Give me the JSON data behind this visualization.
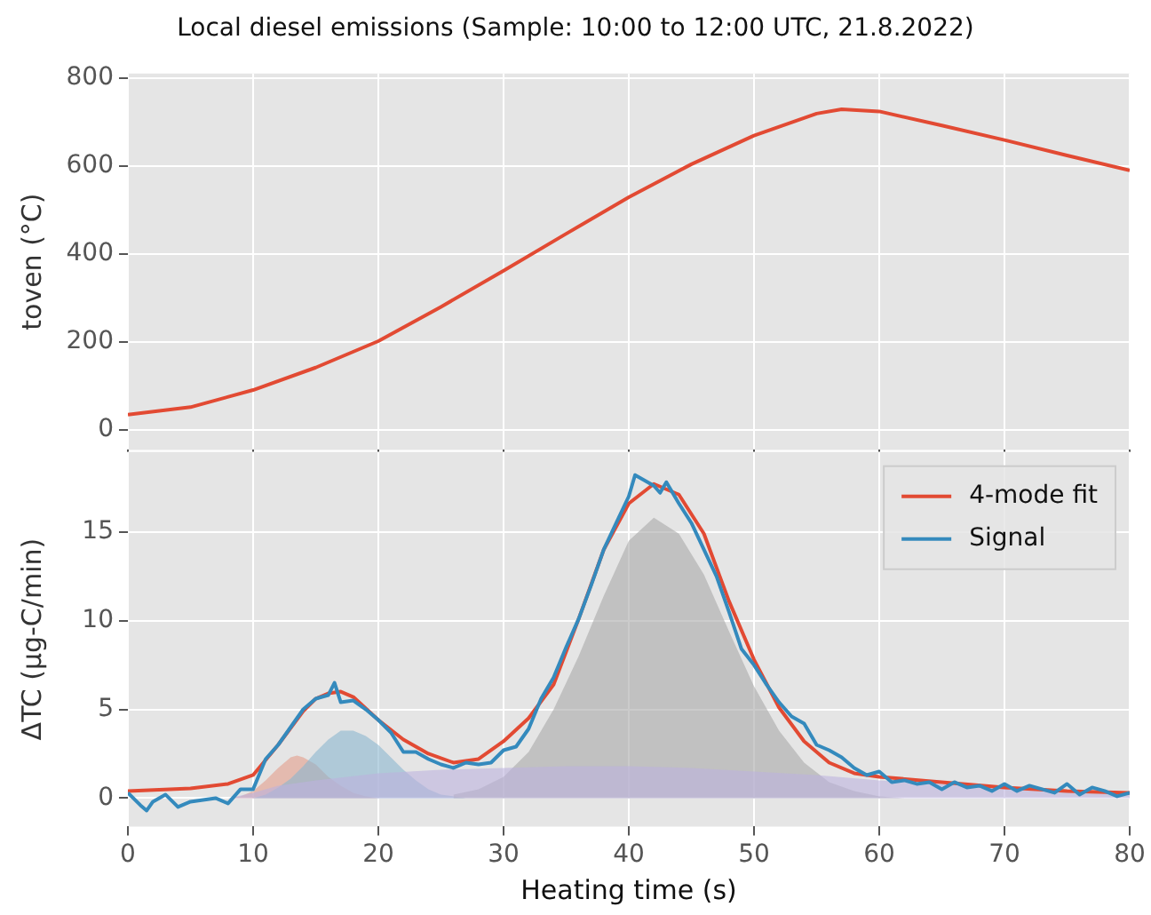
{
  "chart_data": [
    {
      "type": "line",
      "title": "Local diesel emissions (Sample: 10:00 to 12:00 UTC, 21.8.2022)",
      "ylabel": "toven (°C)",
      "x": [
        0,
        5,
        10,
        15,
        20,
        25,
        30,
        35,
        40,
        45,
        50,
        55,
        57,
        60,
        65,
        70,
        75,
        80
      ],
      "series": [
        {
          "color": "#e24a33",
          "values": [
            35,
            52,
            91,
            142,
            202,
            280,
            362,
            446,
            529,
            604,
            669,
            719,
            729,
            724,
            692,
            659,
            624,
            590
          ]
        }
      ],
      "xlim": [
        0,
        80
      ],
      "xticks": [
        0,
        10,
        20,
        30,
        40,
        50,
        60,
        70,
        80
      ],
      "ylim": [
        -45,
        810
      ],
      "yticks": [
        0,
        200,
        400,
        600,
        800
      ],
      "grid": true,
      "tick_labels": "y"
    },
    {
      "type": "line",
      "xlabel": "Heating time (s)",
      "ylabel": "ΔTC (μg-C/min)",
      "series": [
        {
          "type": "area",
          "color": "#e39c8a",
          "x": [
            8,
            9,
            10,
            11,
            12,
            13,
            13.5,
            14,
            15,
            16,
            17,
            18,
            19,
            20
          ],
          "values": [
            0,
            0.1,
            0.4,
            1.0,
            1.7,
            2.3,
            2.4,
            2.3,
            1.9,
            1.2,
            0.7,
            0.3,
            0.1,
            0
          ]
        },
        {
          "type": "area",
          "color": "#8ab6cf",
          "x": [
            10,
            11,
            12,
            13,
            14,
            15,
            16,
            17,
            18,
            19,
            20,
            21,
            22,
            23,
            24,
            25,
            26,
            27
          ],
          "values": [
            0,
            0.2,
            0.6,
            1.1,
            1.8,
            2.6,
            3.3,
            3.8,
            3.8,
            3.5,
            3.0,
            2.3,
            1.6,
            1.0,
            0.5,
            0.2,
            0.1,
            0
          ]
        },
        {
          "type": "area",
          "color": "#a8a8a8",
          "x": [
            26,
            28,
            30,
            32,
            34,
            36,
            38,
            40,
            42,
            44,
            46,
            48,
            50,
            52,
            54,
            56,
            58,
            60,
            62
          ],
          "values": [
            0.2,
            0.5,
            1.2,
            2.6,
            5.0,
            8.0,
            11.4,
            14.5,
            15.8,
            14.9,
            12.6,
            9.4,
            6.3,
            3.8,
            2.0,
            0.9,
            0.4,
            0.1,
            0
          ]
        },
        {
          "type": "area",
          "color": "#bcb3dd",
          "x": [
            8,
            10,
            12,
            15,
            20,
            25,
            30,
            35,
            40,
            45,
            50,
            55,
            60,
            65,
            70,
            75,
            80
          ],
          "values": [
            0,
            0.3,
            0.7,
            1.0,
            1.4,
            1.6,
            1.7,
            1.8,
            1.8,
            1.7,
            1.5,
            1.3,
            1.0,
            0.8,
            0.6,
            0.4,
            0.3
          ]
        },
        {
          "name": "4-mode fit",
          "color": "#e24a33",
          "x": [
            0,
            5,
            8,
            10,
            12,
            14,
            15,
            16,
            17,
            18,
            20,
            22,
            24,
            26,
            28,
            30,
            32,
            34,
            36,
            38,
            40,
            42,
            44,
            46,
            48,
            50,
            52,
            54,
            56,
            58,
            60,
            65,
            70,
            75,
            80
          ],
          "values": [
            0.4,
            0.55,
            0.8,
            1.3,
            3.0,
            4.9,
            5.6,
            5.9,
            6.0,
            5.7,
            4.4,
            3.3,
            2.5,
            2.0,
            2.2,
            3.2,
            4.5,
            6.4,
            10.1,
            14.0,
            16.6,
            17.7,
            17.1,
            14.9,
            11.1,
            7.8,
            5.1,
            3.2,
            2.0,
            1.4,
            1.2,
            0.9,
            0.6,
            0.4,
            0.3
          ]
        },
        {
          "name": "Signal",
          "color": "#348abd",
          "x": [
            0,
            1,
            1.5,
            2,
            3,
            4,
            5,
            6,
            7,
            8,
            9,
            10,
            11,
            12,
            13,
            14,
            15,
            16,
            16.5,
            17,
            18,
            19,
            20,
            21,
            22,
            23,
            24,
            25,
            26,
            27,
            28,
            29,
            30,
            31,
            32,
            33,
            34,
            35,
            36,
            37,
            38,
            39,
            40,
            40.5,
            41,
            42,
            42.5,
            43,
            44,
            45,
            46,
            47,
            48,
            49,
            50,
            51,
            52,
            53,
            54,
            55,
            56,
            57,
            58,
            59,
            60,
            61,
            62,
            63,
            64,
            65,
            66,
            67,
            68,
            69,
            70,
            71,
            72,
            73,
            74,
            75,
            76,
            77,
            78,
            79,
            80
          ],
          "values": [
            0.3,
            -0.4,
            -0.7,
            -0.2,
            0.2,
            -0.5,
            -0.2,
            -0.1,
            0.0,
            -0.3,
            0.5,
            0.5,
            2.2,
            3.0,
            4.0,
            5.0,
            5.6,
            5.8,
            6.5,
            5.4,
            5.5,
            5.0,
            4.4,
            3.7,
            2.6,
            2.6,
            2.2,
            1.9,
            1.7,
            2.0,
            1.9,
            2.0,
            2.7,
            2.9,
            3.9,
            5.6,
            6.8,
            8.5,
            10.1,
            12.0,
            14.0,
            15.5,
            17.0,
            18.2,
            18.0,
            17.6,
            17.2,
            17.8,
            16.6,
            15.5,
            14.0,
            12.5,
            10.5,
            8.4,
            7.5,
            6.4,
            5.4,
            4.6,
            4.2,
            3.0,
            2.7,
            2.3,
            1.7,
            1.3,
            1.5,
            0.9,
            1.0,
            0.8,
            0.9,
            0.5,
            0.9,
            0.6,
            0.7,
            0.4,
            0.8,
            0.4,
            0.7,
            0.5,
            0.3,
            0.8,
            0.2,
            0.6,
            0.4,
            0.1,
            0.3
          ]
        }
      ],
      "xlim": [
        0,
        80
      ],
      "xticks": [
        0,
        10,
        20,
        30,
        40,
        50,
        60,
        70,
        80
      ],
      "ylim": [
        -1.6,
        19.5
      ],
      "yticks": [
        0,
        5,
        10,
        15
      ],
      "grid": true,
      "legend": "top right"
    }
  ]
}
